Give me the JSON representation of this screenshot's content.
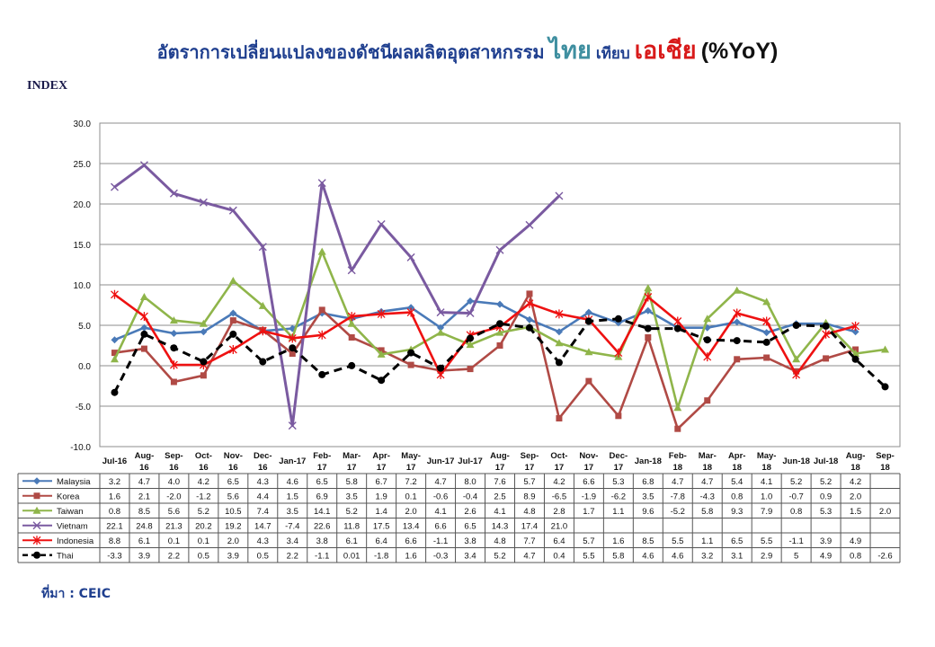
{
  "title": {
    "main": "อัตราการเปลี่ยนแปลงของดัชนีผลผลิตอุตสาหกรรม",
    "thai": "ไทย",
    "vs": "เทียบ",
    "asia": "เอเชีย",
    "unit": "(%YoY)"
  },
  "index_label": "INDEX",
  "source": "ที่มา : CEIC",
  "colors": {
    "Malaysia": "#4a7ab8",
    "Korea": "#b04a45",
    "Taiwan": "#8fb54a",
    "Vietnam": "#7a5aa0",
    "Indonesia": "#ee1111",
    "Thai": "#000000"
  },
  "chart_data": {
    "type": "line",
    "ylim": [
      -10,
      30
    ],
    "yticks": [
      "30.0",
      "25.0",
      "20.0",
      "15.0",
      "10.0",
      "5.0",
      "0.0",
      "-5.0",
      "-10.0"
    ],
    "grid": true,
    "categories": [
      [
        "Jul-16"
      ],
      [
        "Aug-",
        "16"
      ],
      [
        "Sep-",
        "16"
      ],
      [
        "Oct-",
        "16"
      ],
      [
        "Nov-",
        "16"
      ],
      [
        "Dec-",
        "16"
      ],
      [
        "Jan-17"
      ],
      [
        "Feb-",
        "17"
      ],
      [
        "Mar-",
        "17"
      ],
      [
        "Apr-",
        "17"
      ],
      [
        "May-",
        "17"
      ],
      [
        "Jun-17"
      ],
      [
        "Jul-17"
      ],
      [
        "Aug-",
        "17"
      ],
      [
        "Sep-",
        "17"
      ],
      [
        "Oct-",
        "17"
      ],
      [
        "Nov-",
        "17"
      ],
      [
        "Dec-",
        "17"
      ],
      [
        "Jan-18"
      ],
      [
        "Feb-",
        "18"
      ],
      [
        "Mar-",
        "18"
      ],
      [
        "Apr-",
        "18"
      ],
      [
        "May-",
        "18"
      ],
      [
        "Jun-18"
      ],
      [
        "Jul-18"
      ],
      [
        "Aug-",
        "18"
      ],
      [
        "Sep-",
        "18"
      ]
    ],
    "series": [
      {
        "name": "Malaysia",
        "marker": "diamond",
        "values": [
          3.2,
          4.7,
          4.0,
          4.2,
          6.5,
          4.3,
          4.6,
          6.5,
          5.8,
          6.7,
          7.2,
          4.7,
          8.0,
          7.6,
          5.7,
          4.2,
          6.6,
          5.3,
          6.8,
          4.7,
          4.7,
          5.4,
          4.1,
          5.2,
          5.2,
          4.2,
          null
        ],
        "labels": [
          "3.2",
          "4.7",
          "4.0",
          "4.2",
          "6.5",
          "4.3",
          "4.6",
          "6.5",
          "5.8",
          "6.7",
          "7.2",
          "4.7",
          "8.0",
          "7.6",
          "5.7",
          "4.2",
          "6.6",
          "5.3",
          "6.8",
          "4.7",
          "4.7",
          "5.4",
          "4.1",
          "5.2",
          "5.2",
          "4.2",
          ""
        ]
      },
      {
        "name": "Korea",
        "marker": "square",
        "values": [
          1.6,
          2.1,
          -2.0,
          -1.2,
          5.6,
          4.4,
          1.5,
          6.9,
          3.5,
          1.9,
          0.1,
          -0.6,
          -0.4,
          2.5,
          8.9,
          -6.5,
          -1.9,
          -6.2,
          3.5,
          -7.8,
          -4.3,
          0.8,
          1.0,
          -0.7,
          0.9,
          2.0,
          null
        ],
        "labels": [
          "1.6",
          "2.1",
          "-2.0",
          "-1.2",
          "5.6",
          "4.4",
          "1.5",
          "6.9",
          "3.5",
          "1.9",
          "0.1",
          "-0.6",
          "-0.4",
          "2.5",
          "8.9",
          "-6.5",
          "-1.9",
          "-6.2",
          "3.5",
          "-7.8",
          "-4.3",
          "0.8",
          "1.0",
          "-0.7",
          "0.9",
          "2.0",
          ""
        ]
      },
      {
        "name": "Taiwan",
        "marker": "triangle",
        "values": [
          0.8,
          8.5,
          5.6,
          5.2,
          10.5,
          7.4,
          3.5,
          14.1,
          5.2,
          1.4,
          2.0,
          4.1,
          2.6,
          4.1,
          4.8,
          2.8,
          1.7,
          1.1,
          9.6,
          -5.2,
          5.8,
          9.3,
          7.9,
          0.8,
          5.3,
          1.5,
          2.0
        ],
        "labels": [
          "0.8",
          "8.5",
          "5.6",
          "5.2",
          "10.5",
          "7.4",
          "3.5",
          "14.1",
          "5.2",
          "1.4",
          "2.0",
          "4.1",
          "2.6",
          "4.1",
          "4.8",
          "2.8",
          "1.7",
          "1.1",
          "9.6",
          "-5.2",
          "5.8",
          "9.3",
          "7.9",
          "0.8",
          "5.3",
          "1.5",
          "2.0"
        ]
      },
      {
        "name": "Vietnam",
        "marker": "x",
        "values": [
          22.1,
          24.8,
          21.3,
          20.2,
          19.2,
          14.7,
          -7.4,
          22.6,
          11.8,
          17.5,
          13.4,
          6.6,
          6.5,
          14.3,
          17.4,
          21.0,
          null,
          null,
          null,
          null,
          null,
          null,
          null,
          null,
          null,
          null,
          null
        ],
        "labels": [
          "22.1",
          "24.8",
          "21.3",
          "20.2",
          "19.2",
          "14.7",
          "-7.4",
          "22.6",
          "11.8",
          "17.5",
          "13.4",
          "6.6",
          "6.5",
          "14.3",
          "17.4",
          "21.0",
          "",
          "",
          "",
          "",
          "",
          "",
          "",
          "",
          "",
          "",
          ""
        ]
      },
      {
        "name": "Indonesia",
        "marker": "star",
        "values": [
          8.8,
          6.1,
          0.1,
          0.1,
          2.0,
          4.3,
          3.4,
          3.8,
          6.1,
          6.4,
          6.6,
          -1.1,
          3.8,
          4.8,
          7.7,
          6.4,
          5.7,
          1.6,
          8.5,
          5.5,
          1.1,
          6.5,
          5.5,
          -1.1,
          3.9,
          4.9,
          null
        ],
        "labels": [
          "8.8",
          "6.1",
          "0.1",
          "0.1",
          "2.0",
          "4.3",
          "3.4",
          "3.8",
          "6.1",
          "6.4",
          "6.6",
          "-1.1",
          "3.8",
          "4.8",
          "7.7",
          "6.4",
          "5.7",
          "1.6",
          "8.5",
          "5.5",
          "1.1",
          "6.5",
          "5.5",
          "-1.1",
          "3.9",
          "4.9",
          ""
        ]
      },
      {
        "name": "Thai",
        "marker": "circle",
        "dashed": true,
        "values": [
          -3.3,
          3.9,
          2.2,
          0.5,
          3.9,
          0.5,
          2.2,
          -1.1,
          0.01,
          -1.8,
          1.6,
          -0.3,
          3.4,
          5.2,
          4.7,
          0.4,
          5.5,
          5.8,
          4.6,
          4.6,
          3.2,
          3.1,
          2.9,
          5,
          4.9,
          0.8,
          -2.6
        ],
        "labels": [
          "-3.3",
          "3.9",
          "2.2",
          "0.5",
          "3.9",
          "0.5",
          "2.2",
          "-1.1",
          "0.01",
          "-1.8",
          "1.6",
          "-0.3",
          "3.4",
          "5.2",
          "4.7",
          "0.4",
          "5.5",
          "5.8",
          "4.6",
          "4.6",
          "3.2",
          "3.1",
          "2.9",
          "5",
          "4.9",
          "0.8",
          "-2.6"
        ]
      }
    ]
  }
}
